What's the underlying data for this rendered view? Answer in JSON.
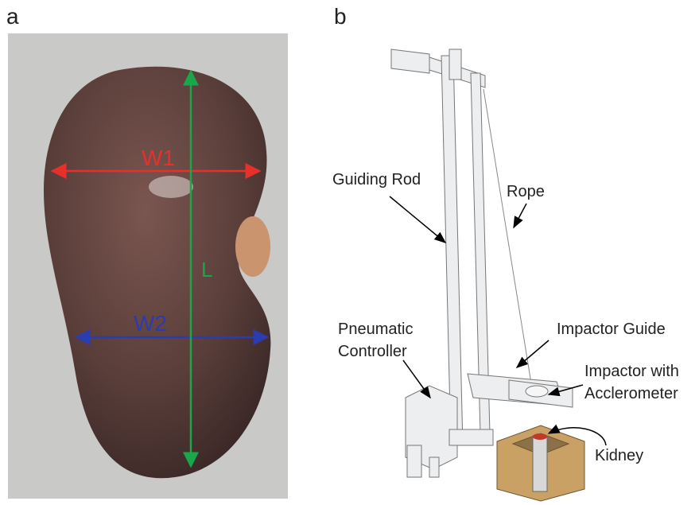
{
  "panels": [
    {
      "label": "a",
      "measurements": {
        "w1": "W1",
        "w2": "W2",
        "l": "L"
      }
    },
    {
      "label": "b",
      "callouts": [
        {
          "lines": [
            "Guiding Rod"
          ]
        },
        {
          "lines": [
            "Rope"
          ]
        },
        {
          "lines": [
            "Pneumatic",
            "Controller"
          ]
        },
        {
          "lines": [
            "Impactor Guide"
          ]
        },
        {
          "lines": [
            "Impactor with",
            "Acclerometer"
          ]
        },
        {
          "lines": [
            "Kidney"
          ]
        }
      ]
    }
  ]
}
